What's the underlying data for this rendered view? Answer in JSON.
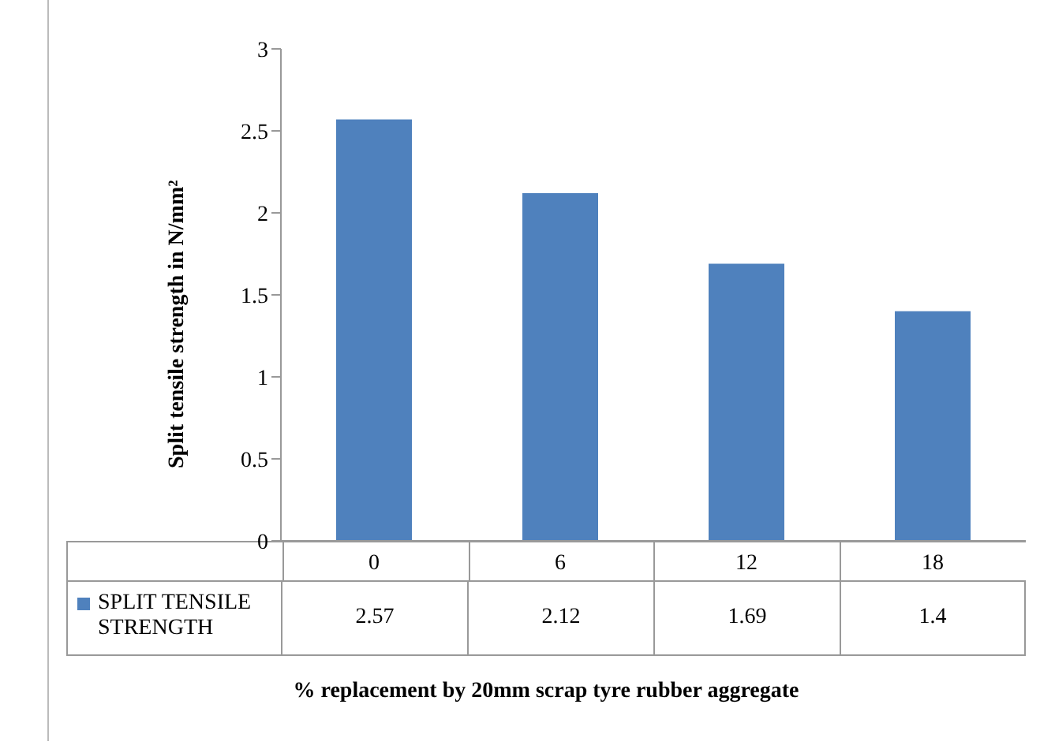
{
  "chart_data": {
    "type": "bar",
    "xlabel": "% replacement by 20mm scrap tyre rubber aggregate",
    "ylabel": "Split tensile strength in N/mm²",
    "categories": [
      "0",
      "6",
      "12",
      "18"
    ],
    "series": [
      {
        "name": "SPLIT TENSILE STRENGTH",
        "color": "#4f81bd",
        "values": [
          2.57,
          2.12,
          1.69,
          1.4
        ]
      }
    ],
    "ylim": [
      0,
      3
    ],
    "yticks": [
      0,
      0.5,
      1,
      1.5,
      2,
      2.5,
      3
    ],
    "data_labels": true,
    "legend": "bottom left"
  }
}
